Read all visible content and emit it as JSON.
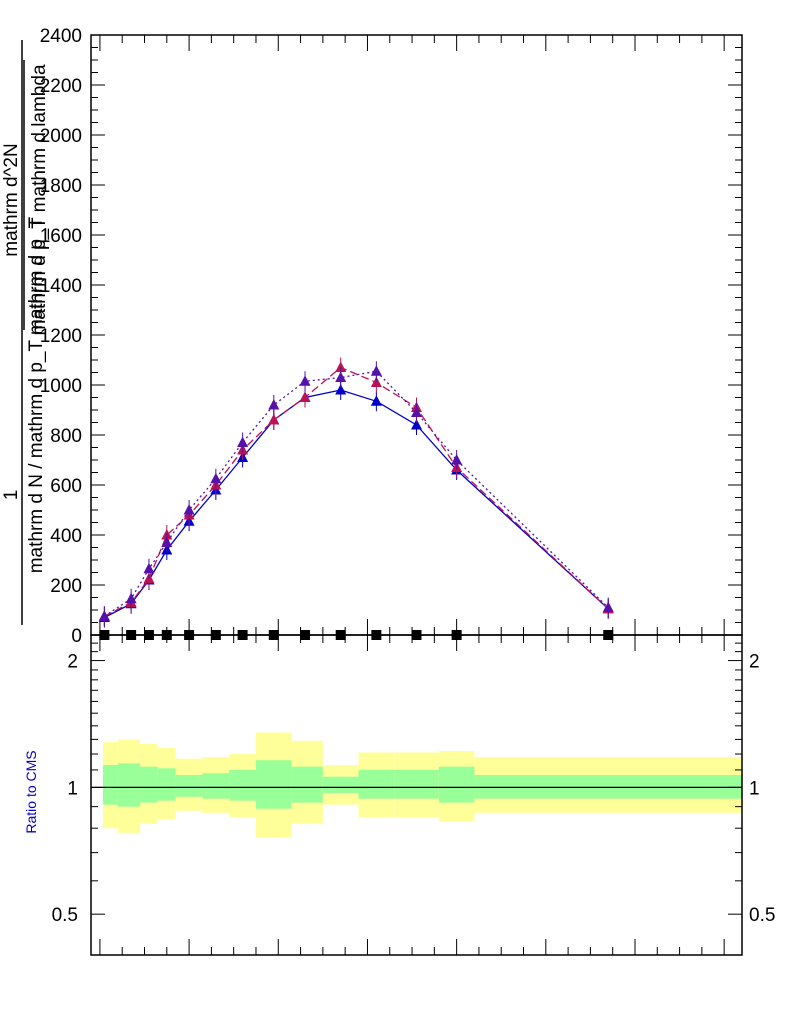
{
  "chart_data": {
    "type": "line",
    "title": "",
    "colors": {
      "series_blue": "#0000cc",
      "series_red": "#bb1155",
      "series_purple": "#5511aa",
      "reference": "#000000",
      "band_inner": "#99ff99",
      "band_outer": "#ffff99",
      "ratio_label": "#0000cc"
    },
    "top_panel": {
      "ylabel_numerator": "1",
      "ylabel_denominator": "mathrm d N / mathrm d p_T mathrm d p_T",
      "ylabel_fraction_numerator": "mathrm d^2N",
      "ylabel_fraction_denominator": "mathrm d p_T mathrm d lambda",
      "ylim": [
        0,
        2400
      ],
      "yticks": [
        "0",
        "200",
        "400",
        "600",
        "800",
        "1000",
        "1200",
        "1400",
        "1600",
        "1800",
        "2000",
        "2200",
        "2400"
      ],
      "x": [
        0.045,
        0.075,
        0.095,
        0.115,
        0.14,
        0.17,
        0.2,
        0.235,
        0.27,
        0.31,
        0.35,
        0.395,
        0.44,
        0.61
      ],
      "series": [
        {
          "style": "solid",
          "marker": "triangle",
          "color": "#0000cc",
          "values": [
            70,
            125,
            220,
            340,
            455,
            580,
            710,
            860,
            950,
            980,
            935,
            840,
            660,
            105
          ]
        },
        {
          "style": "dashed",
          "marker": "triangle",
          "color": "#bb1155",
          "values": [
            75,
            130,
            225,
            400,
            480,
            600,
            740,
            860,
            950,
            1070,
            1010,
            910,
            670,
            105
          ]
        },
        {
          "style": "dotted",
          "marker": "triangle",
          "color": "#5511aa",
          "values": [
            75,
            145,
            265,
            370,
            500,
            625,
            770,
            920,
            1015,
            1030,
            1055,
            890,
            700,
            110
          ]
        },
        {
          "style": "markers",
          "marker": "square",
          "color": "#000000",
          "values": [
            0,
            0,
            0,
            0,
            0,
            0,
            0,
            0,
            0,
            0,
            0,
            0,
            0,
            0
          ]
        }
      ]
    },
    "ratio_panel": {
      "ylabel": "Ratio to CMS",
      "ylim": [
        0.4,
        2.3
      ],
      "yticks_left": [
        "0.5",
        "1",
        "2"
      ],
      "yticks_right": [
        "0.5",
        "1",
        "2"
      ],
      "reference_line": 1,
      "bin_edges": [
        0.03,
        0.06,
        0.085,
        0.105,
        0.125,
        0.155,
        0.185,
        0.215,
        0.255,
        0.29,
        0.33,
        0.37,
        0.42,
        0.46,
        0.76
      ],
      "band_inner_low": [
        0.91,
        0.9,
        0.92,
        0.93,
        0.95,
        0.94,
        0.93,
        0.89,
        0.92,
        0.97,
        0.94,
        0.94,
        0.92,
        0.94
      ],
      "band_inner_high": [
        1.13,
        1.14,
        1.12,
        1.11,
        1.07,
        1.08,
        1.1,
        1.16,
        1.12,
        1.06,
        1.1,
        1.1,
        1.12,
        1.07
      ],
      "band_outer_low": [
        0.8,
        0.78,
        0.82,
        0.84,
        0.88,
        0.87,
        0.85,
        0.76,
        0.82,
        0.91,
        0.85,
        0.85,
        0.83,
        0.87
      ],
      "band_outer_high": [
        1.28,
        1.3,
        1.27,
        1.24,
        1.17,
        1.18,
        1.2,
        1.35,
        1.29,
        1.13,
        1.21,
        1.21,
        1.22,
        1.18
      ]
    },
    "xlim": [
      0.03,
      0.76
    ],
    "grid": false
  }
}
